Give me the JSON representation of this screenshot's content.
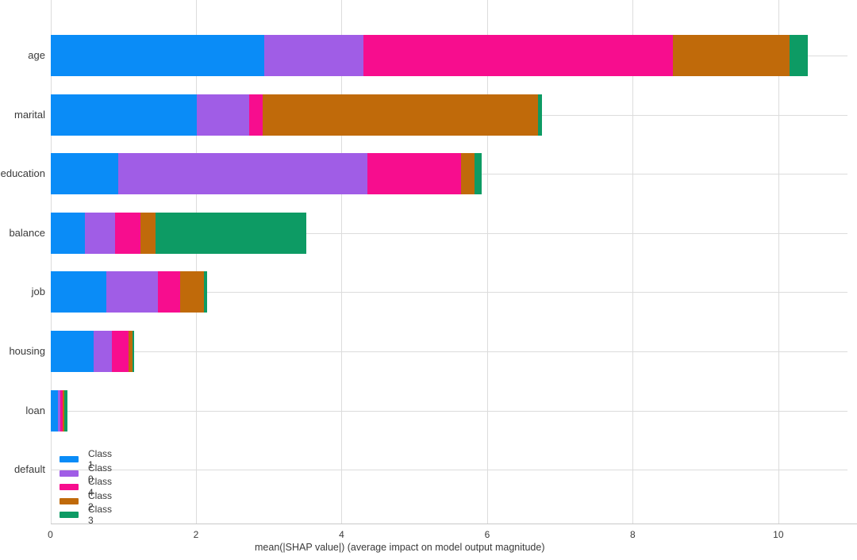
{
  "chart_data": {
    "type": "bar",
    "orientation": "horizontal",
    "stacked": true,
    "title": "",
    "xlabel": "mean(|SHAP value|) (average impact on model output magnitude)",
    "ylabel": "",
    "categories": [
      "age",
      "marital",
      "education",
      "balance",
      "job",
      "housing",
      "loan",
      "default"
    ],
    "series": [
      {
        "name": "Class 1",
        "color": "#0a8cf7",
        "values": [
          2.94,
          2.01,
          0.93,
          0.47,
          0.77,
          0.59,
          0.1,
          0
        ]
      },
      {
        "name": "Class 0",
        "color": "#a05de6",
        "values": [
          1.36,
          0.72,
          3.42,
          0.42,
          0.71,
          0.25,
          0.04,
          0
        ]
      },
      {
        "name": "Class 4",
        "color": "#f70d8e",
        "values": [
          4.25,
          0.19,
          1.29,
          0.35,
          0.3,
          0.23,
          0.03,
          0
        ]
      },
      {
        "name": "Class 2",
        "color": "#c06a0a",
        "values": [
          1.6,
          3.78,
          0.19,
          0.2,
          0.33,
          0.06,
          0.02,
          0
        ]
      },
      {
        "name": "Class 3",
        "color": "#0d9b64",
        "values": [
          0.26,
          0.05,
          0.09,
          2.08,
          0.04,
          0.02,
          0.04,
          0
        ]
      }
    ],
    "totals": [
      10.41,
      6.75,
      5.92,
      3.52,
      2.15,
      1.15,
      0.23,
      0
    ],
    "x_ticks": [
      0,
      2,
      4,
      6,
      8,
      10
    ],
    "xlim": [
      0,
      10.95
    ],
    "grid": true,
    "legend_position": "bottom-left"
  },
  "colors": {
    "background": "#ffffff",
    "gridline": "#dcdcdc",
    "axis_line": "#c9c9c9",
    "text": "#3a3a3a"
  }
}
